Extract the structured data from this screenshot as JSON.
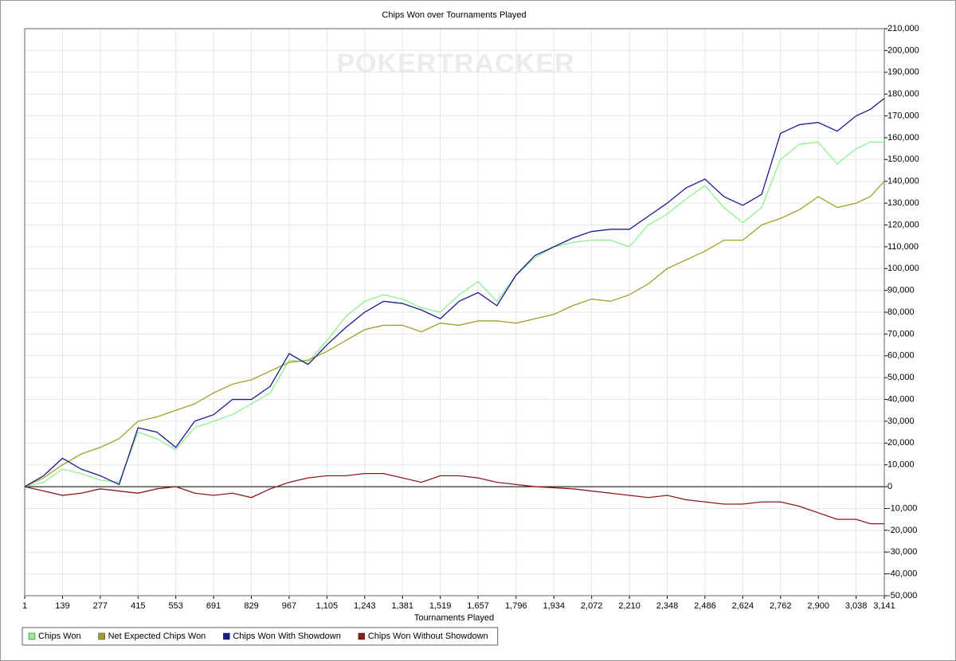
{
  "chart_data": {
    "type": "line",
    "title": "Chips Won over Tournaments Played",
    "watermark": "POKERTRACKER",
    "xlabel": "Tournaments Played",
    "x": [
      1,
      70,
      139,
      208,
      277,
      346,
      415,
      484,
      553,
      622,
      691,
      760,
      829,
      898,
      967,
      1036,
      1105,
      1174,
      1243,
      1312,
      1381,
      1450,
      1519,
      1588,
      1657,
      1726,
      1796,
      1865,
      1934,
      2003,
      2072,
      2141,
      2210,
      2279,
      2348,
      2417,
      2486,
      2555,
      2624,
      2693,
      2762,
      2831,
      2900,
      2969,
      3038,
      3090,
      3141
    ],
    "series": [
      {
        "name": "Chips Won",
        "color": "#8ef08e",
        "values": [
          0,
          2000,
          8000,
          6000,
          3000,
          2000,
          25000,
          22000,
          17000,
          27000,
          30000,
          33000,
          38000,
          43000,
          58000,
          57000,
          67000,
          78000,
          85000,
          88000,
          86000,
          82000,
          80000,
          88000,
          94000,
          85000,
          97000,
          105000,
          110000,
          112000,
          113000,
          113000,
          110000,
          120000,
          125000,
          132000,
          138000,
          128000,
          121000,
          128000,
          150000,
          157000,
          158000,
          148000,
          155000,
          158000,
          158000
        ]
      },
      {
        "name": "Net Expected Chips Won",
        "color": "#a0a028",
        "values": [
          0,
          4000,
          10000,
          15000,
          18000,
          22000,
          30000,
          32000,
          35000,
          38000,
          43000,
          47000,
          49000,
          53000,
          57000,
          58000,
          62000,
          67000,
          72000,
          74000,
          74000,
          71000,
          75000,
          74000,
          76000,
          76000,
          75000,
          77000,
          79000,
          83000,
          86000,
          85000,
          88000,
          93000,
          100000,
          104000,
          108000,
          113000,
          113000,
          120000,
          123000,
          127000,
          133000,
          128000,
          130000,
          133000,
          140000
        ]
      },
      {
        "name": "Chips Won With Showdown",
        "color": "#1a1a8c",
        "values": [
          0,
          5000,
          13000,
          8000,
          5000,
          1000,
          27000,
          25000,
          18000,
          30000,
          33000,
          40000,
          40000,
          46000,
          61000,
          56000,
          65000,
          73000,
          80000,
          85000,
          84000,
          81000,
          77000,
          85000,
          89000,
          83000,
          97000,
          106000,
          110000,
          114000,
          117000,
          118000,
          118000,
          124000,
          130000,
          137000,
          141000,
          133000,
          129000,
          134000,
          162000,
          166000,
          167000,
          163000,
          170000,
          173000,
          178000
        ]
      },
      {
        "name": "Chips Won Without Showdown",
        "color": "#8b1a1a",
        "values": [
          0,
          -2000,
          -4000,
          -3000,
          -1000,
          -2000,
          -3000,
          -1000,
          0,
          -3000,
          -4000,
          -3000,
          -5000,
          -1000,
          2000,
          4000,
          5000,
          5000,
          6000,
          6000,
          4000,
          2000,
          5000,
          5000,
          4000,
          2000,
          1000,
          0,
          -500,
          -1000,
          -2000,
          -3000,
          -4000,
          -5000,
          -4000,
          -6000,
          -7000,
          -8000,
          -8000,
          -7000,
          -7000,
          -9000,
          -12000,
          -15000,
          -15000,
          -17000,
          -17000
        ]
      }
    ],
    "xlim": [
      1,
      3141
    ],
    "xticks": [
      1,
      139,
      277,
      415,
      553,
      691,
      829,
      967,
      {
        "value": 1105,
        "label": "1,105"
      },
      {
        "value": 1243,
        "label": "1,243"
      },
      {
        "value": 1381,
        "label": "1,381"
      },
      {
        "value": 1519,
        "label": "1,519"
      },
      {
        "value": 1657,
        "label": "1,657"
      },
      {
        "value": 1796,
        "label": "1,796"
      },
      {
        "value": 1934,
        "label": "1,934"
      },
      {
        "value": 2072,
        "label": "2,072"
      },
      {
        "value": 2210,
        "label": "2,210"
      },
      {
        "value": 2348,
        "label": "2,348"
      },
      {
        "value": 2486,
        "label": "2,486"
      },
      {
        "value": 2624,
        "label": "2,624"
      },
      {
        "value": 2762,
        "label": "2,762"
      },
      {
        "value": 2900,
        "label": "2,900"
      },
      {
        "value": 3038,
        "label": "3,038"
      },
      {
        "value": 3141,
        "label": "3,141"
      }
    ],
    "ylim": [
      -50000,
      210000
    ],
    "yticks": [
      {
        "value": -50000,
        "label": "-50,000"
      },
      {
        "value": -40000,
        "label": "-40,000"
      },
      {
        "value": -30000,
        "label": "-30,000"
      },
      {
        "value": -20000,
        "label": "-20,000"
      },
      {
        "value": -10000,
        "label": "-10,000"
      },
      0,
      {
        "value": 10000,
        "label": "10,000"
      },
      {
        "value": 20000,
        "label": "20,000"
      },
      {
        "value": 30000,
        "label": "30,000"
      },
      {
        "value": 40000,
        "label": "40,000"
      },
      {
        "value": 50000,
        "label": "50,000"
      },
      {
        "value": 60000,
        "label": "60,000"
      },
      {
        "value": 70000,
        "label": "70,000"
      },
      {
        "value": 80000,
        "label": "80,000"
      },
      {
        "value": 90000,
        "label": "90,000"
      },
      {
        "value": 100000,
        "label": "100,000"
      },
      {
        "value": 110000,
        "label": "110,000"
      },
      {
        "value": 120000,
        "label": "120,000"
      },
      {
        "value": 130000,
        "label": "130,000"
      },
      {
        "value": 140000,
        "label": "140,000"
      },
      {
        "value": 150000,
        "label": "150,000"
      },
      {
        "value": 160000,
        "label": "160,000"
      },
      {
        "value": 170000,
        "label": "170,000"
      },
      {
        "value": 180000,
        "label": "180,000"
      },
      {
        "value": 190000,
        "label": "190,000"
      },
      {
        "value": 200000,
        "label": "200,000"
      },
      {
        "value": 210000,
        "label": "210,000"
      }
    ],
    "grid": true,
    "legend": "bottom-left"
  }
}
